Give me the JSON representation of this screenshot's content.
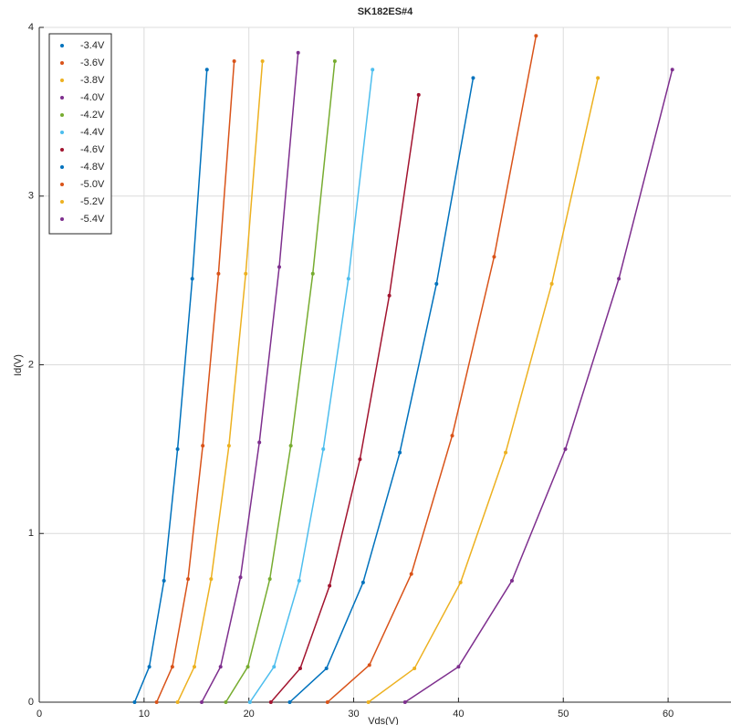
{
  "chart_data": {
    "type": "scatter",
    "title": "SK182ES#4",
    "x_label": "Vds(V)",
    "y_label": "Id(V)",
    "xlim": [
      0,
      66
    ],
    "ylim": [
      0,
      4
    ],
    "xticks": [
      0,
      10,
      20,
      30,
      40,
      50,
      60
    ],
    "yticks": [
      0,
      1,
      2,
      3,
      4
    ],
    "grid": true,
    "legend": "upper-left",
    "series": [
      {
        "name": "-3.4V",
        "color": "#0072bd",
        "x": [
          9.1,
          10.5,
          11.9,
          13.2,
          14.6,
          16.0
        ],
        "values": [
          0,
          0.21,
          0.72,
          1.5,
          2.51,
          3.75
        ]
      },
      {
        "name": "-3.6V",
        "color": "#d95319",
        "x": [
          11.2,
          12.7,
          14.2,
          15.6,
          17.1,
          18.6
        ],
        "values": [
          0,
          0.21,
          0.73,
          1.52,
          2.54,
          3.8
        ]
      },
      {
        "name": "-3.8V",
        "color": "#edb120",
        "x": [
          13.2,
          14.8,
          16.4,
          18.1,
          19.7,
          21.3
        ],
        "values": [
          0,
          0.21,
          0.73,
          1.52,
          2.54,
          3.8
        ]
      },
      {
        "name": "-4.0V",
        "color": "#7e2f8e",
        "x": [
          15.5,
          17.3,
          19.2,
          21.0,
          22.9,
          24.7
        ],
        "values": [
          0,
          0.21,
          0.74,
          1.54,
          2.58,
          3.85
        ]
      },
      {
        "name": "-4.2V",
        "color": "#77ac30",
        "x": [
          17.8,
          19.9,
          22.0,
          24.0,
          26.1,
          28.2
        ],
        "values": [
          0,
          0.21,
          0.73,
          1.52,
          2.54,
          3.8
        ]
      },
      {
        "name": "-4.4V",
        "color": "#4dbeee",
        "x": [
          20.1,
          22.4,
          24.8,
          27.1,
          29.5,
          31.8
        ],
        "values": [
          0,
          0.21,
          0.72,
          1.5,
          2.51,
          3.75
        ]
      },
      {
        "name": "-4.6V",
        "color": "#a2142f",
        "x": [
          22.1,
          24.9,
          27.7,
          30.6,
          33.4,
          36.2
        ],
        "values": [
          0,
          0.2,
          0.69,
          1.44,
          2.41,
          3.6
        ]
      },
      {
        "name": "-4.8V",
        "color": "#0072bd",
        "x": [
          23.9,
          27.4,
          30.9,
          34.4,
          37.9,
          41.4
        ],
        "values": [
          0,
          0.2,
          0.71,
          1.48,
          2.48,
          3.7
        ]
      },
      {
        "name": "-5.0V",
        "color": "#d95319",
        "x": [
          27.5,
          31.5,
          35.5,
          39.4,
          43.4,
          47.4
        ],
        "values": [
          0,
          0.22,
          0.76,
          1.58,
          2.64,
          3.95
        ]
      },
      {
        "name": "-5.2V",
        "color": "#edb120",
        "x": [
          31.4,
          35.8,
          40.2,
          44.5,
          48.9,
          53.3
        ],
        "values": [
          0,
          0.2,
          0.71,
          1.48,
          2.48,
          3.7
        ]
      },
      {
        "name": "-5.4V",
        "color": "#7e2f8e",
        "x": [
          34.9,
          40.0,
          45.1,
          50.2,
          55.3,
          60.4
        ],
        "values": [
          0,
          0.21,
          0.72,
          1.5,
          2.51,
          3.75
        ]
      }
    ]
  }
}
